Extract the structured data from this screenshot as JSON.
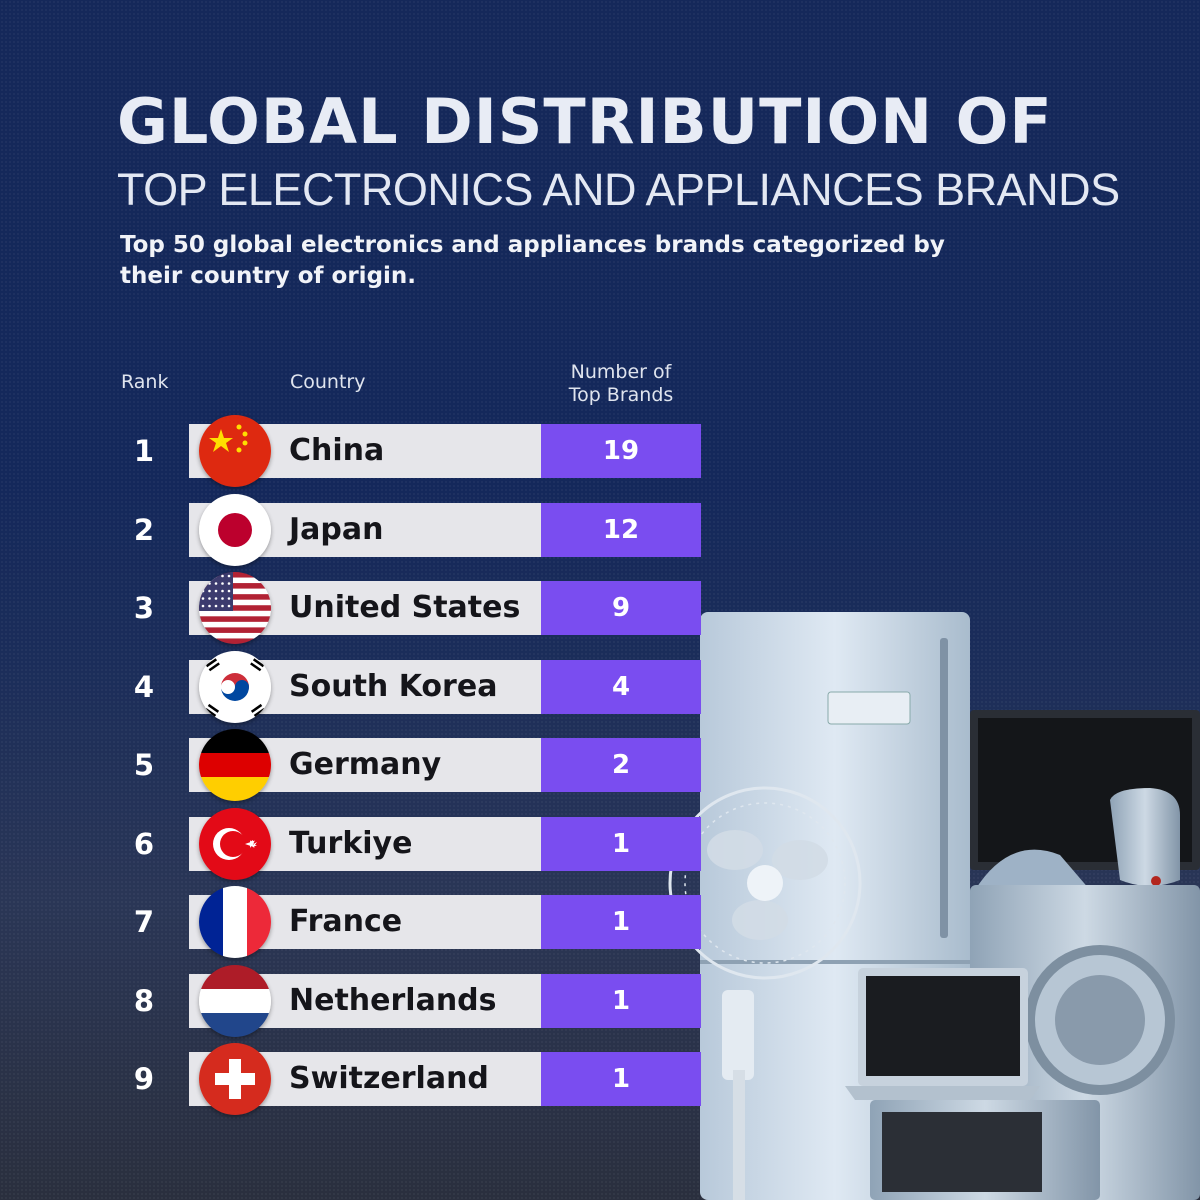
{
  "title_main": "GLOBAL DISTRIBUTION OF",
  "title_sub": "TOP ELECTRONICS AND APPLIANCES BRANDS",
  "subtitle": "Top 50 global electronics and appliances brands categorized by their country of origin.",
  "headers": {
    "rank": "Rank",
    "country": "Country",
    "number_line1": "Number of",
    "number_line2": "Top Brands"
  },
  "colors": {
    "background": "#14285b",
    "bar_light": "#e6e6ea",
    "bar_purple": "#7a4df0"
  },
  "chart_data": {
    "type": "table",
    "columns": [
      "Rank",
      "Country",
      "Number of Top Brands"
    ],
    "rows": [
      {
        "rank": "1",
        "country": "China",
        "value": 19,
        "flag": "china-flag-icon"
      },
      {
        "rank": "2",
        "country": "Japan",
        "value": 12,
        "flag": "japan-flag-icon"
      },
      {
        "rank": "3",
        "country": "United States",
        "value": 9,
        "flag": "usa-flag-icon"
      },
      {
        "rank": "4",
        "country": "South Korea",
        "value": 4,
        "flag": "south-korea-flag-icon"
      },
      {
        "rank": "5",
        "country": "Germany",
        "value": 2,
        "flag": "germany-flag-icon"
      },
      {
        "rank": "6",
        "country": "Turkiye",
        "value": 1,
        "flag": "turkiye-flag-icon"
      },
      {
        "rank": "7",
        "country": "France",
        "value": 1,
        "flag": "france-flag-icon"
      },
      {
        "rank": "8",
        "country": "Netherlands",
        "value": 1,
        "flag": "netherlands-flag-icon"
      },
      {
        "rank": "9",
        "country": "Switzerland",
        "value": 1,
        "flag": "switzerland-flag-icon"
      }
    ]
  }
}
